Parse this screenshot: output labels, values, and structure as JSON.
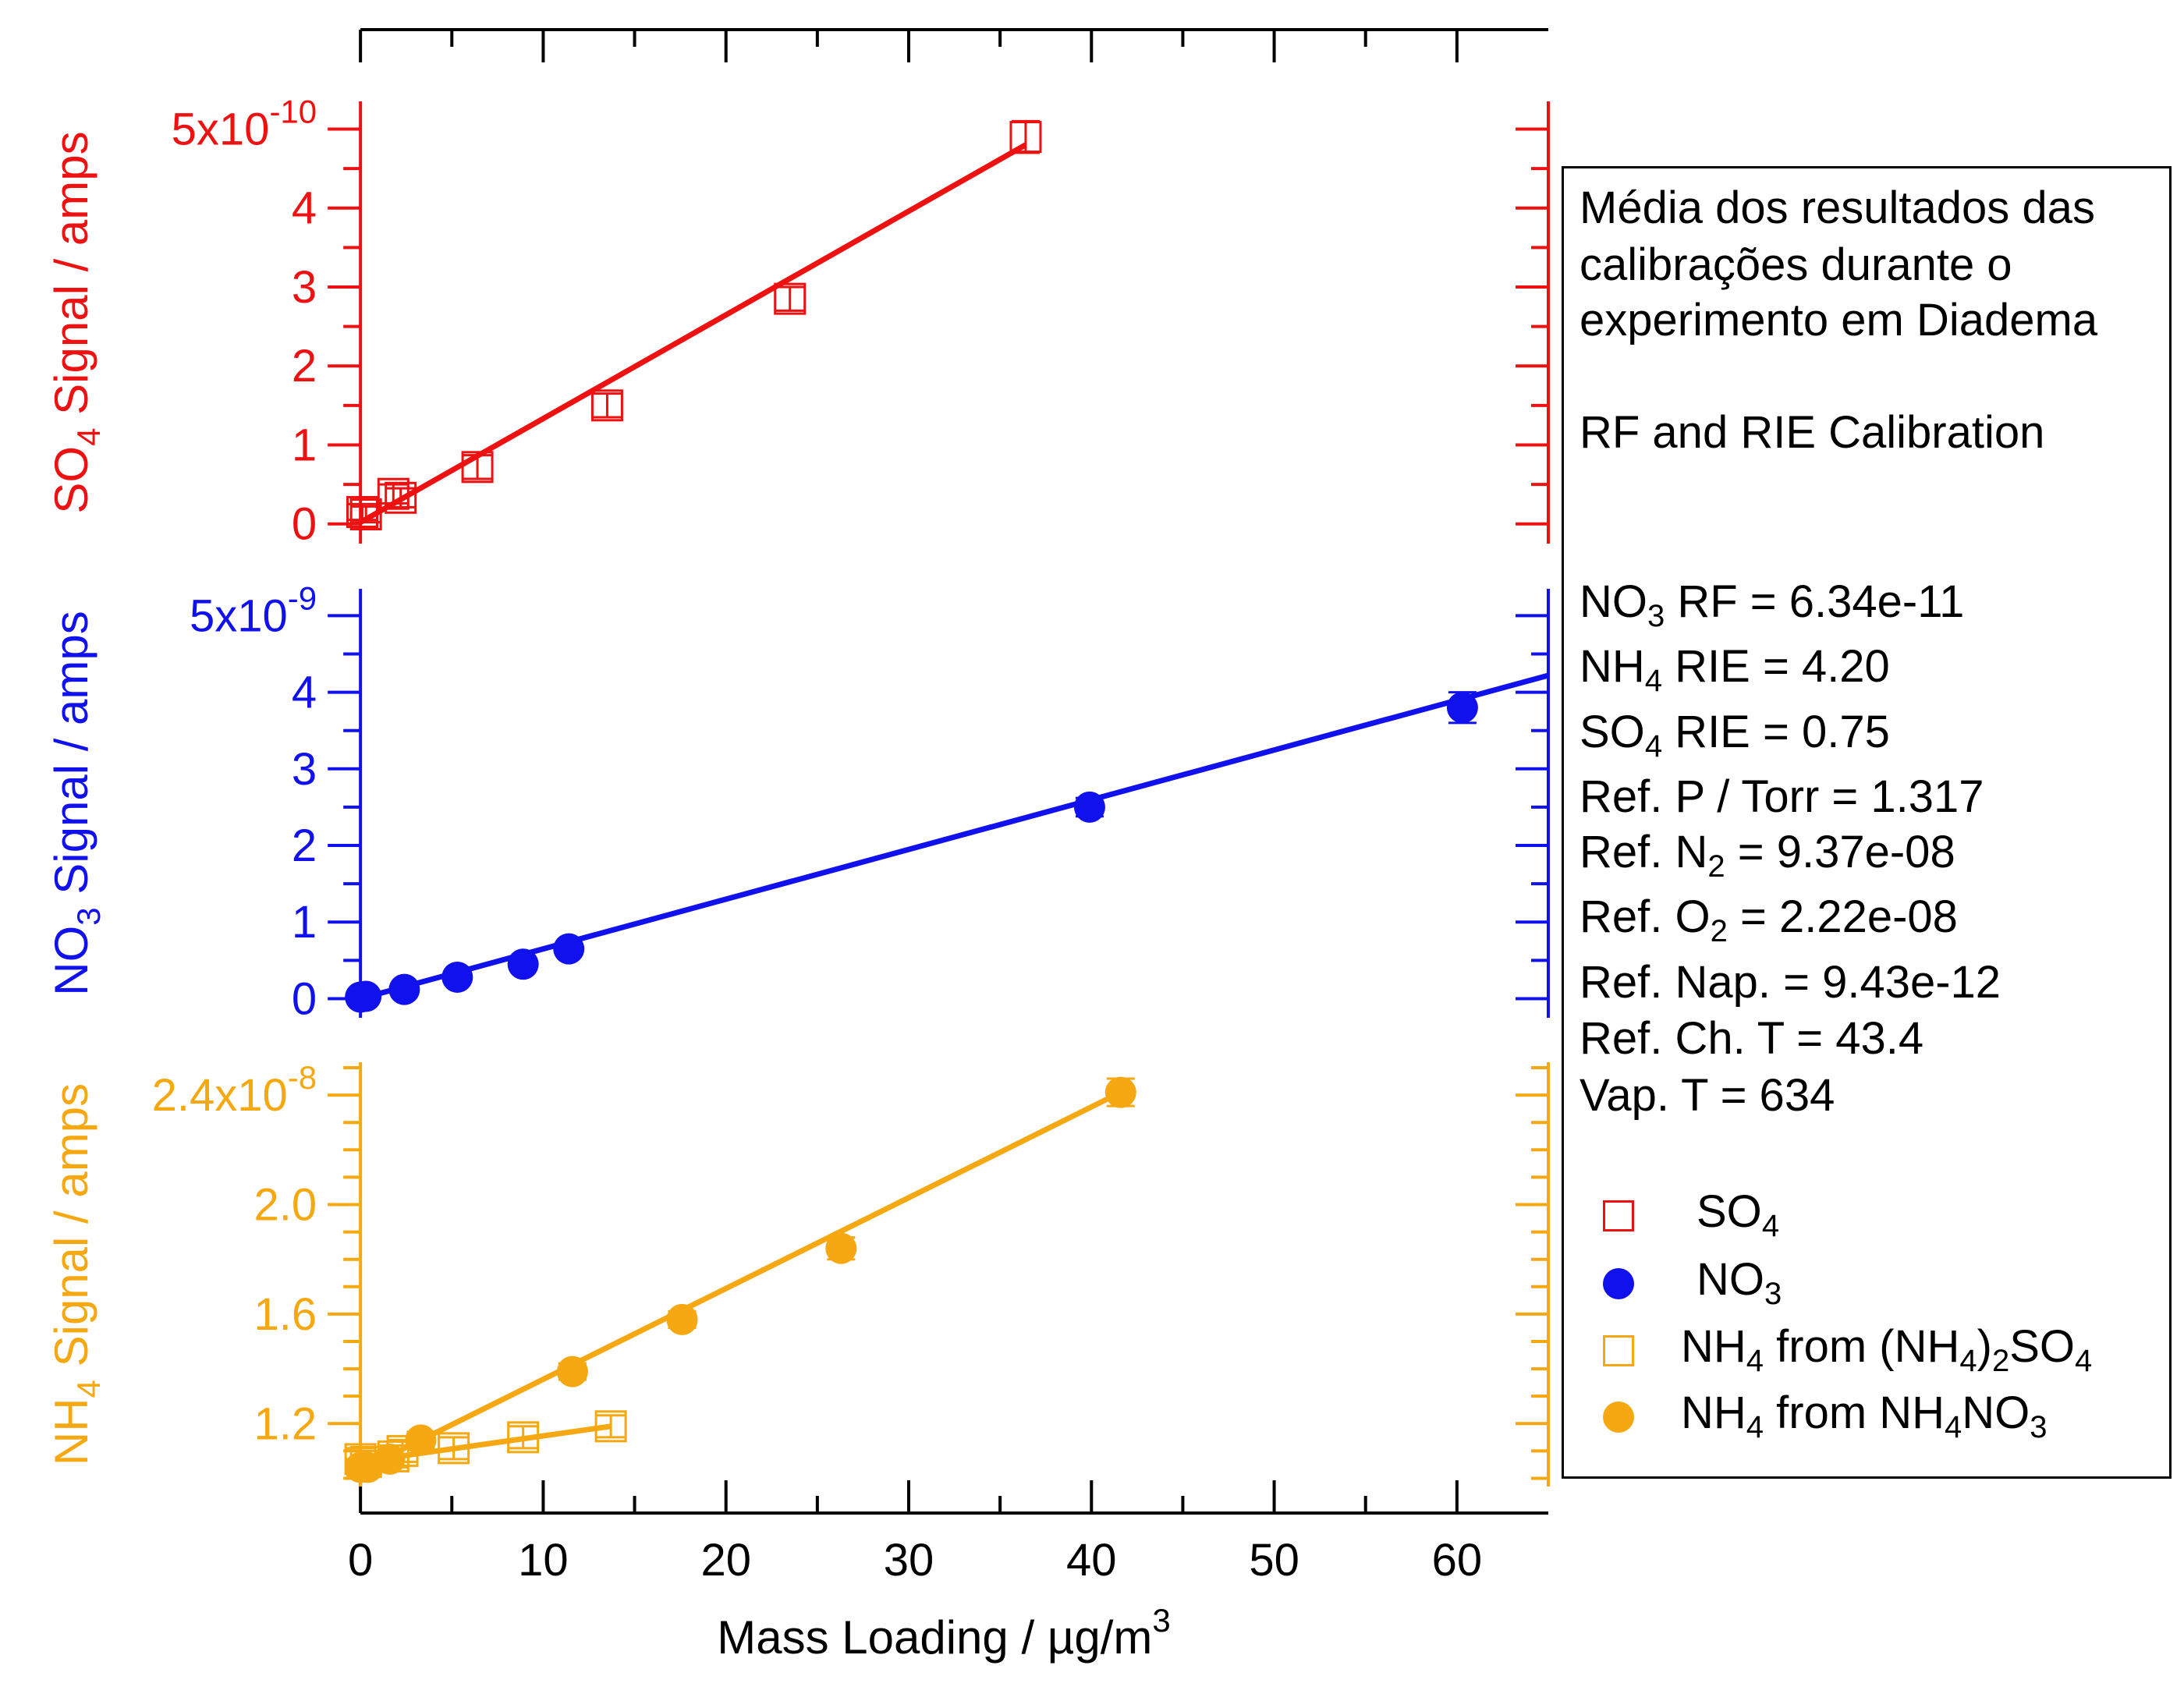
{
  "chart_data": {
    "type": "scatter",
    "xlabel": "Mass Loading / µg/m3",
    "xlabel_parts": {
      "text": "Mass Loading / ",
      "mu": "µ",
      "unit": "g/m",
      "exp": "3"
    },
    "xlim": [
      -1.5,
      65
    ],
    "x_ticks": [
      0,
      10,
      20,
      30,
      40,
      50,
      60
    ],
    "panels": [
      {
        "id": "so4",
        "color": "#ee1111",
        "ylabel_parts": {
          "pre": "SO",
          "sub": "4",
          "post": " Signal / amps"
        },
        "ylim": [
          -2.5e-11,
          5.35e-10
        ],
        "y_ticks": [
          {
            "value": 0,
            "label": "0"
          },
          {
            "value": 1e-10,
            "label": "1"
          },
          {
            "value": 2e-10,
            "label": "2"
          },
          {
            "value": 3e-10,
            "label": "3"
          },
          {
            "value": 4e-10,
            "label": "4"
          }
        ],
        "y_top_label": {
          "value": 5e-10,
          "base": "5x10",
          "exp": "-10"
        },
        "series": [
          {
            "name": "SO4",
            "marker": "open-square",
            "x": [
              0.1,
              0.3,
              1.8,
              2.2,
              6.4,
              13.5,
              23.5,
              36.4
            ],
            "y": [
              1.5e-11,
              1.2e-11,
              3.8e-11,
              3.3e-11,
              7.2e-11,
              1.5e-10,
              2.85e-10,
              4.9e-10
            ],
            "yerr": [
              1e-11,
              1e-11,
              1.2e-11,
              1.2e-11,
              1.5e-11,
              1.5e-11,
              1.5e-11,
              2e-11
            ],
            "fit": [
              [
                0,
                2e-12
              ],
              [
                36.4,
                4.8e-10
              ]
            ]
          }
        ]
      },
      {
        "id": "no3",
        "color": "#1111ee",
        "ylabel_parts": {
          "pre": "NO",
          "sub": "3",
          "post": " Signal / amps"
        },
        "ylim": [
          -2.5e-10,
          5.35e-09
        ],
        "y_ticks": [
          {
            "value": 0,
            "label": "0"
          },
          {
            "value": 1e-09,
            "label": "1"
          },
          {
            "value": 2e-09,
            "label": "2"
          },
          {
            "value": 3e-09,
            "label": "3"
          },
          {
            "value": 4e-09,
            "label": "4"
          }
        ],
        "y_top_label": {
          "value": 5e-09,
          "base": "5x10",
          "exp": "-9"
        },
        "series": [
          {
            "name": "NO3",
            "marker": "filled-circle",
            "x": [
              0,
              0.3,
              2.4,
              5.3,
              8.9,
              11.4,
              39.9,
              60.3
            ],
            "y": [
              2e-11,
              3e-11,
              1.2e-10,
              2.8e-10,
              4.5e-10,
              6.5e-10,
              2.5e-09,
              3.8e-09
            ],
            "yerr": [
              5e-11,
              5e-11,
              5e-11,
              5e-11,
              5e-11,
              5e-11,
              1.2e-10,
              2e-10
            ],
            "fit": [
              [
                0,
                0.0
              ],
              [
                65,
                4.22e-09
              ]
            ]
          }
        ]
      },
      {
        "id": "nh4",
        "color": "#f5a811",
        "ylabel_parts": {
          "pre": "NH",
          "sub": "4",
          "post": " Signal / amps"
        },
        "ylim": [
          9.7e-09,
          2.52e-08
        ],
        "y_ticks": [
          {
            "value": 1.2e-08,
            "label": "1.2"
          },
          {
            "value": 1.6e-08,
            "label": "1.6"
          },
          {
            "value": 2e-08,
            "label": "2.0"
          }
        ],
        "y_top_label": {
          "value": 2.4e-08,
          "base": "2.4x10",
          "exp": "-8"
        },
        "y_minor_step": 1e-09,
        "series": [
          {
            "name": "NH4 from (NH4)2SO4",
            "marker": "open-square",
            "x": [
              0,
              0.3,
              1.8,
              2.3,
              5.1,
              8.9,
              13.7
            ],
            "y": [
              1.07e-08,
              1.06e-08,
              1.08e-08,
              1.1e-08,
              1.11e-08,
              1.15e-08,
              1.19e-08
            ],
            "yerr": [
              4e-10,
              4e-10,
              4e-10,
              4e-10,
              4e-10,
              4e-10,
              4e-10
            ],
            "fit": [
              [
                0,
                1.06e-08
              ],
              [
                13.7,
                1.19e-08
              ]
            ]
          },
          {
            "name": "NH4 from NH4NO3",
            "marker": "filled-circle",
            "x": [
              0,
              0.4,
              1.6,
              3.3,
              11.6,
              17.6,
              26.3,
              41.6
            ],
            "y": [
              1.04e-08,
              1.04e-08,
              1.07e-08,
              1.14e-08,
              1.39e-08,
              1.58e-08,
              1.84e-08,
              2.41e-08
            ],
            "yerr": [
              3e-10,
              3e-10,
              3e-10,
              3e-10,
              3e-10,
              3e-10,
              4e-10,
              5e-10
            ],
            "fit": [
              [
                0,
                1.03e-08
              ],
              [
                41.6,
                2.41e-08
              ]
            ]
          }
        ]
      }
    ]
  },
  "legend": {
    "note_lines": [
      "Média dos resultados das",
      "calibrações durante o",
      "experimento em Diadema"
    ],
    "subtitle": "RF and RIE Calibration",
    "params": {
      "no3_rf": {
        "pre": "NO",
        "sub": "3",
        "post": " RF = 6.34e-11"
      },
      "nh4_rie": {
        "pre": "NH",
        "sub": "4",
        "post": " RIE = 4.20"
      },
      "so4_rie": {
        "pre": "SO",
        "sub": "4",
        "post": " RIE = 0.75"
      },
      "ref_p": "Ref. P / Torr = 1.317",
      "ref_n2": {
        "pre": "Ref. N",
        "sub": "2",
        "post": " = 9.37e-08"
      },
      "ref_o2": {
        "pre": "Ref. O",
        "sub": "2",
        "post": " = 2.22e-08"
      },
      "ref_nap": "Ref. Nap. = 9.43e-12",
      "ref_ch_t": "Ref. Ch. T = 43.4",
      "vap_t": "Vap. T = 634"
    },
    "entries": {
      "so4": {
        "pre": "SO",
        "sub": "4"
      },
      "no3": {
        "pre": "NO",
        "sub": "3"
      },
      "nh4_as": {
        "a": "NH",
        "b": "4",
        "c": " from (NH",
        "d": "4",
        "e": ")",
        "f": "2",
        "g": "SO",
        "h": "4"
      },
      "nh4_an": {
        "a": "NH",
        "b": "4",
        "c": " from NH",
        "d": "4",
        "e": "NO",
        "f": "3"
      }
    }
  }
}
